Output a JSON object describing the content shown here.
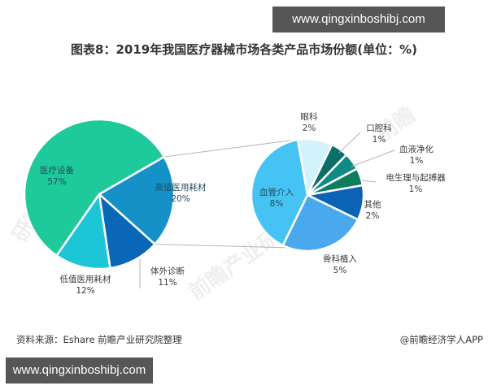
{
  "watermark": {
    "top_text": "www.qingxinboshibj.com",
    "bottom_text": "www.qingxinboshibj.com"
  },
  "title": "图表8：2019年我国医疗器械市场各类产品市场份额(单位：%)",
  "footer": {
    "source": "资料来源：Eshare 前瞻产业研究院整理",
    "credit": "@前瞻经济学人APP"
  },
  "chart_data": [
    {
      "type": "pie",
      "title": "2019年我国医疗器械市场各类产品市场份额",
      "unit": "%",
      "categories": [
        "高值医用耗材",
        "体外诊断",
        "低值医用耗材",
        "医疗设备"
      ],
      "values": [
        20,
        11,
        12,
        57
      ],
      "labels": [
        "20%",
        "11%",
        "12%",
        "57%"
      ],
      "colors": [
        "#1591c8",
        "#0a67b8",
        "#1dc6d6",
        "#1ec99b"
      ],
      "start_angle_deg": -30,
      "exploded_into_subpie": "高值医用耗材"
    },
    {
      "type": "pie",
      "title": "高值医用耗材细分",
      "unit": "%",
      "categories": [
        "眼科",
        "口腔科",
        "血液净化",
        "电生理与起搏器",
        "其他",
        "骨科植入",
        "血管介入"
      ],
      "values": [
        2,
        1,
        1,
        1,
        2,
        5,
        8
      ],
      "labels": [
        "2%",
        "1%",
        "1%",
        "1%",
        "2%",
        "5%",
        "8%"
      ],
      "colors": [
        "#d2f3fb",
        "#0c6e68",
        "#0f8a85",
        "#0c7d5e",
        "#0a63b5",
        "#4aa9ec",
        "#45c3f3"
      ],
      "start_angle_deg": -100
    }
  ]
}
